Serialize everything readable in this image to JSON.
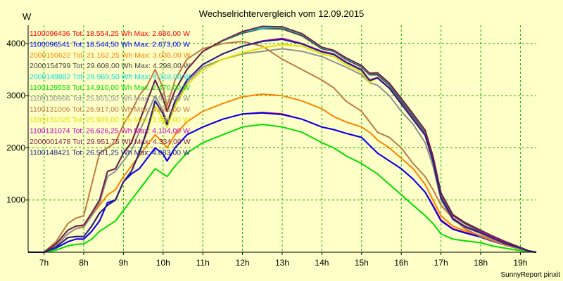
{
  "chart_data": {
    "type": "line",
    "title": "Wechselrichtervergleich vom 12.09.2015",
    "ylabel": "W",
    "footer": "SunnyReport pinxit",
    "xlim": [
      6.6,
      19.4
    ],
    "ylim": [
      0,
      4350
    ],
    "y_ticks": [
      1000,
      2000,
      3000,
      4000
    ],
    "x_ticks": [
      {
        "x": 7,
        "label": "7h"
      },
      {
        "x": 8,
        "label": "8h"
      },
      {
        "x": 9,
        "label": "9h"
      },
      {
        "x": 10,
        "label": "10h"
      },
      {
        "x": 11,
        "label": "11h"
      },
      {
        "x": 12,
        "label": "12h"
      },
      {
        "x": 13,
        "label": "13h"
      },
      {
        "x": 14,
        "label": "14h"
      },
      {
        "x": 15,
        "label": "15h"
      },
      {
        "x": 16,
        "label": "16h"
      },
      {
        "x": 17,
        "label": "17h"
      },
      {
        "x": 18,
        "label": "18h"
      },
      {
        "x": 19,
        "label": "19h"
      }
    ],
    "grid": true,
    "legend_position": "top-left",
    "x": [
      6.6,
      7.0,
      7.3,
      7.6,
      7.8,
      8.0,
      8.2,
      8.4,
      8.6,
      8.8,
      9.0,
      9.2,
      9.4,
      9.6,
      9.8,
      10.0,
      10.1,
      10.3,
      10.6,
      11.0,
      11.5,
      12.0,
      12.5,
      13.0,
      13.5,
      14.0,
      14.3,
      14.6,
      15.0,
      15.2,
      15.4,
      15.7,
      16.0,
      16.3,
      16.6,
      16.8,
      17.0,
      17.3,
      17.6,
      18.0,
      18.3,
      18.6,
      19.0,
      19.2,
      19.4
    ],
    "series": [
      {
        "name": "1100096436",
        "label": "1100096436 Tot: 18.554,25 Wh Max: 2.686,00 W",
        "color": "#ff0000",
        "values": [
          0,
          0,
          80,
          200,
          250,
          250,
          400,
          600,
          950,
          1000,
          1350,
          1500,
          1600,
          1800,
          2000,
          1880,
          1750,
          2000,
          2250,
          2400,
          2550,
          2650,
          2680,
          2650,
          2550,
          2400,
          2350,
          2280,
          2200,
          2050,
          1900,
          1750,
          1600,
          1400,
          1150,
          900,
          620,
          450,
          380,
          300,
          220,
          150,
          60,
          20,
          0
        ]
      },
      {
        "name": "1100096541",
        "label": "1100096541 Tot: 18.544,50 Wh Max: 2.673,00 W",
        "color": "#0000ff",
        "values": [
          0,
          0,
          80,
          200,
          250,
          250,
          400,
          600,
          950,
          1000,
          1350,
          1500,
          1600,
          1800,
          2000,
          1880,
          1750,
          2000,
          2250,
          2400,
          2550,
          2650,
          2670,
          2640,
          2550,
          2400,
          2350,
          2280,
          2200,
          2050,
          1900,
          1750,
          1600,
          1400,
          1150,
          880,
          600,
          440,
          370,
          290,
          210,
          140,
          60,
          20,
          0
        ]
      },
      {
        "name": "2000150622",
        "label": "2000150622 Tot: 21.162,25 Wh Max: 3.036,00 W",
        "color": "#ff8000",
        "values": [
          0,
          0,
          130,
          350,
          450,
          500,
          700,
          900,
          1100,
          1200,
          1450,
          1650,
          1850,
          2050,
          2250,
          2100,
          2000,
          2250,
          2500,
          2700,
          2850,
          2980,
          3030,
          3000,
          2900,
          2750,
          2600,
          2500,
          2400,
          2300,
          2150,
          2000,
          1800,
          1600,
          1300,
          1000,
          700,
          500,
          410,
          320,
          240,
          160,
          70,
          20,
          0
        ]
      },
      {
        "name": "2000154799",
        "label": "2000154799 Tot: 29.608,00 Wh Max: 4.298,00 W",
        "color": "#404040",
        "values": [
          0,
          0,
          160,
          420,
          500,
          520,
          750,
          1000,
          1550,
          1600,
          1900,
          2100,
          2500,
          2900,
          3300,
          2950,
          2700,
          3100,
          3500,
          3850,
          4050,
          4200,
          4290,
          4280,
          4150,
          3900,
          3850,
          3700,
          3550,
          3400,
          3400,
          3200,
          2900,
          2600,
          2300,
          1800,
          1100,
          700,
          550,
          400,
          300,
          200,
          90,
          30,
          0
        ]
      },
      {
        "name": "2000149882",
        "label": "2000149882 Tot: 29.969,50 Wh Max: 4.318,00 W",
        "color": "#00e0e0",
        "values": [
          0,
          0,
          160,
          420,
          500,
          520,
          750,
          1000,
          1550,
          1600,
          1900,
          2100,
          2500,
          2900,
          3300,
          2950,
          2700,
          3100,
          3500,
          3850,
          4050,
          4220,
          4300,
          4310,
          4180,
          3920,
          3860,
          3720,
          3570,
          3420,
          3430,
          3230,
          2940,
          2640,
          2330,
          1830,
          1130,
          720,
          570,
          420,
          310,
          210,
          90,
          30,
          0
        ]
      },
      {
        "name": "1100129553",
        "label": "1100129553 Tot: 14.910,00 Wh Max: 2.470,00 W",
        "color": "#00e000",
        "values": [
          0,
          0,
          40,
          120,
          150,
          160,
          250,
          400,
          500,
          600,
          800,
          1000,
          1200,
          1400,
          1600,
          1500,
          1450,
          1650,
          1900,
          2100,
          2250,
          2400,
          2450,
          2400,
          2300,
          2100,
          2000,
          1850,
          1700,
          1600,
          1500,
          1300,
          1100,
          900,
          700,
          550,
          350,
          250,
          220,
          180,
          120,
          80,
          30,
          10,
          0
        ]
      },
      {
        "name": "1100130966",
        "label": "1100130966 Tot: 25.855,50 Wh Max: 3.973,00 W",
        "color": "#909090",
        "values": [
          0,
          0,
          130,
          350,
          450,
          480,
          700,
          950,
          1450,
          1550,
          1750,
          1950,
          2300,
          2650,
          3000,
          2700,
          2500,
          2850,
          3250,
          3550,
          3700,
          3800,
          3850,
          3900,
          3850,
          3750,
          3650,
          3550,
          3400,
          3250,
          3200,
          3000,
          2700,
          2450,
          2100,
          1650,
          1000,
          620,
          480,
          360,
          260,
          170,
          70,
          20,
          0
        ]
      },
      {
        "name": "1100131006",
        "label": "1100131006 Tot: 26.917,00 Wh Max: 4.046,00 W",
        "color": "#c07840",
        "values": [
          0,
          0,
          200,
          550,
          650,
          700,
          1300,
          1900,
          2000,
          2100,
          2450,
          2700,
          3000,
          3200,
          3500,
          3150,
          2800,
          3300,
          3700,
          3900,
          4000,
          4040,
          3950,
          3700,
          3500,
          3300,
          3150,
          2900,
          2700,
          2500,
          2300,
          2200,
          2000,
          1700,
          1450,
          1200,
          900,
          650,
          450,
          300,
          220,
          140,
          60,
          20,
          0
        ]
      },
      {
        "name": "1100131025",
        "label": "1100131025 Tot: 25.906,00 Wh Max: 3.981,00 W",
        "color": "#e0e000",
        "values": [
          0,
          0,
          100,
          280,
          300,
          300,
          500,
          750,
          900,
          1000,
          1350,
          1550,
          1900,
          2300,
          2800,
          2550,
          2400,
          2800,
          3200,
          3500,
          3700,
          3820,
          3920,
          3980,
          3950,
          3800,
          3750,
          3600,
          3450,
          3250,
          3350,
          3150,
          2850,
          2550,
          2250,
          1750,
          1050,
          650,
          500,
          380,
          280,
          180,
          80,
          20,
          0
        ]
      },
      {
        "name": "1100131074",
        "label": "1100131074 Tot: 26.626,25 Wh Max: 4.104,00 W",
        "color": "#c000c0",
        "values": [
          0,
          0,
          100,
          280,
          300,
          300,
          500,
          750,
          900,
          1000,
          1350,
          1550,
          1900,
          2350,
          2900,
          2650,
          2450,
          2900,
          3300,
          3600,
          3800,
          3950,
          4050,
          4100,
          4000,
          3850,
          3800,
          3650,
          3500,
          3300,
          3350,
          3150,
          2850,
          2550,
          2250,
          1750,
          1050,
          650,
          500,
          380,
          280,
          180,
          80,
          20,
          0
        ]
      },
      {
        "name": "2000001478",
        "label": "2000001478 Tot: 29.951,75 Wh Max: 4.334,00 W",
        "color": "#7a1c40",
        "values": [
          0,
          0,
          160,
          420,
          500,
          520,
          750,
          1000,
          1550,
          1600,
          1900,
          2100,
          2500,
          2900,
          3300,
          2950,
          2700,
          3100,
          3500,
          3850,
          4060,
          4230,
          4330,
          4320,
          4190,
          3930,
          3870,
          3730,
          3580,
          3430,
          3440,
          3240,
          2950,
          2650,
          2340,
          1840,
          1140,
          720,
          570,
          420,
          310,
          210,
          90,
          30,
          0
        ]
      },
      {
        "name": "1100148421",
        "label": "1100148421 Tot: 26.501,25 Wh Max: 4.083,00 W",
        "color": "#202080",
        "values": [
          0,
          0,
          100,
          280,
          300,
          300,
          500,
          750,
          900,
          1000,
          1350,
          1550,
          1900,
          2350,
          2900,
          2650,
          2450,
          2900,
          3300,
          3600,
          3800,
          3950,
          4040,
          4080,
          3990,
          3840,
          3790,
          3640,
          3490,
          3290,
          3340,
          3140,
          2840,
          2540,
          2240,
          1740,
          1040,
          640,
          490,
          370,
          270,
          170,
          80,
          20,
          0
        ]
      }
    ]
  }
}
